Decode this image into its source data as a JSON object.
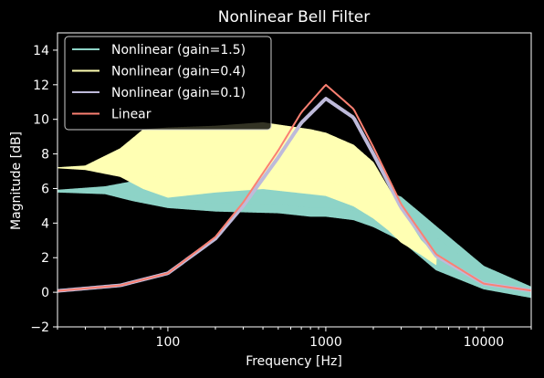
{
  "chart_data": {
    "type": "line",
    "title": "Nonlinear Bell Filter",
    "xlabel": "Frequency [Hz]",
    "ylabel": "Magnitude [dB]",
    "xscale": "log",
    "xlim": [
      20,
      20000
    ],
    "ylim": [
      -2,
      15
    ],
    "xticks": [
      {
        "value": 100,
        "label": "100"
      },
      {
        "value": 1000,
        "label": "1000"
      },
      {
        "value": 10000,
        "label": "10000"
      }
    ],
    "yticks": [
      {
        "value": -2,
        "label": "−2"
      },
      {
        "value": 0,
        "label": "0"
      },
      {
        "value": 2,
        "label": "2"
      },
      {
        "value": 4,
        "label": "4"
      },
      {
        "value": 6,
        "label": "6"
      },
      {
        "value": 8,
        "label": "8"
      },
      {
        "value": 10,
        "label": "10"
      },
      {
        "value": 12,
        "label": "12"
      },
      {
        "value": 14,
        "label": "14"
      }
    ],
    "grid": false,
    "legend": "top-left",
    "series": [
      {
        "name": "Nonlinear (gain=1.5)",
        "color": "#8dd3c7",
        "style": "noisy-band",
        "x": [
          20,
          40,
          60,
          100,
          200,
          500,
          800,
          1000,
          1500,
          2000,
          3000,
          5000,
          10000,
          20000
        ],
        "upper": [
          5.9,
          6.1,
          6.4,
          6.4,
          6.5,
          6.5,
          6.4,
          6.4,
          6.3,
          6.1,
          5.5,
          3.8,
          1.5,
          0.3
        ],
        "lower": [
          5.8,
          5.7,
          5.3,
          4.9,
          4.7,
          4.6,
          4.4,
          4.4,
          4.2,
          3.8,
          3.0,
          1.3,
          0.2,
          -0.3
        ]
      },
      {
        "name": "Nonlinear (gain=0.4)",
        "color": "#ffffb3",
        "style": "noisy-band",
        "x": [
          20,
          30,
          50,
          70,
          100,
          200,
          400,
          800,
          1000,
          1500,
          2000,
          2500,
          3000,
          4000,
          5000
        ],
        "upper": [
          7.2,
          7.3,
          8.3,
          9.4,
          9.5,
          9.6,
          9.8,
          9.4,
          9.2,
          8.5,
          7.5,
          6.0,
          4.8,
          3.0,
          2.1
        ],
        "lower": [
          7.2,
          7.1,
          6.7,
          6.0,
          5.5,
          5.8,
          6.0,
          5.7,
          5.6,
          5.0,
          4.3,
          3.6,
          2.9,
          2.2,
          1.6
        ]
      },
      {
        "name": "Nonlinear (gain=0.1)",
        "color": "#bebada",
        "style": "line",
        "x": [
          20,
          50,
          100,
          200,
          300,
          500,
          700,
          1000,
          1500,
          2000,
          3000,
          5000,
          10000,
          20000
        ],
        "y": [
          0.08,
          0.4,
          1.1,
          3.1,
          5.0,
          7.8,
          9.8,
          11.2,
          10.1,
          8.0,
          4.9,
          2.1,
          0.5,
          0.1
        ]
      },
      {
        "name": "Linear",
        "color": "#fb8072",
        "style": "line",
        "x": [
          20,
          50,
          100,
          200,
          300,
          500,
          700,
          1000,
          1500,
          2000,
          3000,
          5000,
          10000,
          20000
        ],
        "y": [
          0.08,
          0.4,
          1.1,
          3.2,
          5.2,
          8.2,
          10.4,
          12.0,
          10.6,
          8.4,
          5.1,
          2.2,
          0.5,
          0.1
        ]
      }
    ]
  }
}
